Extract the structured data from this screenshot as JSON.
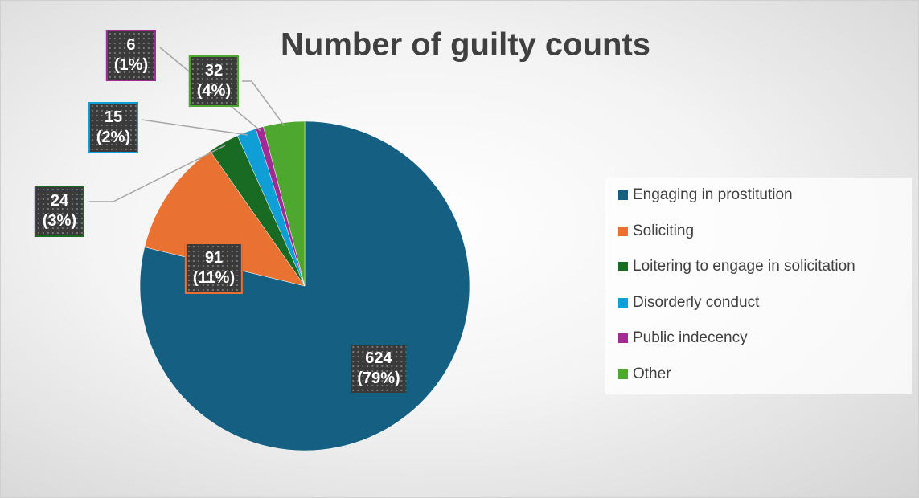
{
  "chart_data": {
    "type": "pie",
    "title": "Number of guilty counts",
    "categories": [
      "Engaging in prostitution",
      "Soliciting",
      "Loitering to engage in solicitation",
      "Disorderly conduct",
      "Public indecency",
      "Other"
    ],
    "values": [
      624,
      91,
      24,
      15,
      6,
      32
    ],
    "value_labels": [
      "624\n(79%)",
      "91\n(11%)",
      "24\n(3%)",
      "15\n(2%)",
      "6\n(1%)",
      "32\n(4%)"
    ],
    "colors": [
      "#156082",
      "#e97132",
      "#196b24",
      "#0f9ed5",
      "#a02b93",
      "#4ea72e"
    ],
    "legend": "right"
  }
}
